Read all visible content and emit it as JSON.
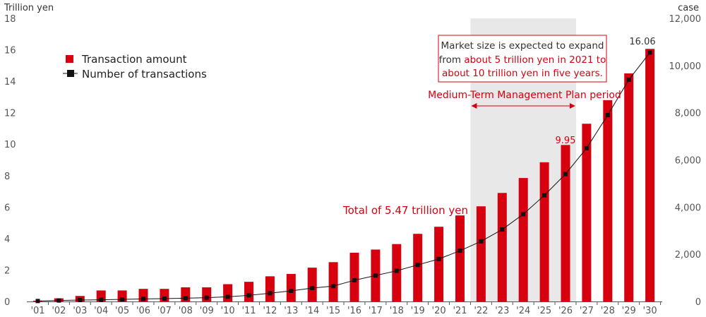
{
  "chart_data": {
    "type": "bar",
    "categories": [
      "'01",
      "'02",
      "'03",
      "'04",
      "'05",
      "'06",
      "'07",
      "'08",
      "'09",
      "'10",
      "'11",
      "'12",
      "'13",
      "'14",
      "'15",
      "'16",
      "'17",
      "'18",
      "'19",
      "'20",
      "'21",
      "'22",
      "'23",
      "'24",
      "'25",
      "'26",
      "'27",
      "'28",
      "'29",
      "'30"
    ],
    "series": [
      {
        "name": "Transaction amount",
        "type": "bar",
        "axis": "left",
        "color": "#d7000f",
        "values": [
          0.05,
          0.2,
          0.35,
          0.7,
          0.7,
          0.8,
          0.8,
          0.9,
          0.9,
          1.1,
          1.25,
          1.6,
          1.75,
          2.15,
          2.5,
          3.1,
          3.3,
          3.65,
          4.3,
          4.75,
          5.47,
          6.05,
          6.9,
          7.85,
          8.85,
          9.95,
          11.3,
          12.8,
          14.5,
          16.06
        ]
      },
      {
        "name": "Number of transactions",
        "type": "line",
        "axis": "right",
        "color": "#111111",
        "values": [
          20,
          40,
          60,
          70,
          90,
          110,
          120,
          140,
          160,
          200,
          260,
          350,
          450,
          570,
          650,
          900,
          1100,
          1300,
          1550,
          1800,
          2150,
          2550,
          3050,
          3700,
          4500,
          5400,
          6500,
          7900,
          9400,
          10550
        ]
      }
    ],
    "y_left": {
      "unit": "Trillion yen",
      "min": 0,
      "max": 18,
      "ticks": [
        "0",
        "2",
        "4",
        "6",
        "8",
        "10",
        "12",
        "14",
        "16",
        "18"
      ]
    },
    "y_right": {
      "unit": "case",
      "min": 0,
      "max": 12000,
      "ticks": [
        "0",
        "2,000",
        "4,000",
        "6,000",
        "8,000",
        "10,000",
        "12,000"
      ]
    },
    "legend": {
      "placement": "top-left"
    },
    "grid": false,
    "highlight": {
      "from": "'22",
      "to": "'26",
      "label": "Medium-Term Management Plan period"
    },
    "annotations": {
      "total_label": "Total of 5.47 trillion yen",
      "label_26": "9.95",
      "label_30": "16.06",
      "callout": {
        "line1": "Market size is expected to expand",
        "line2_prefix": "from ",
        "line2_red": "about 5 trillion yen in 2021 to",
        "line3_red": "about 10 trillion yen in five years."
      }
    }
  }
}
